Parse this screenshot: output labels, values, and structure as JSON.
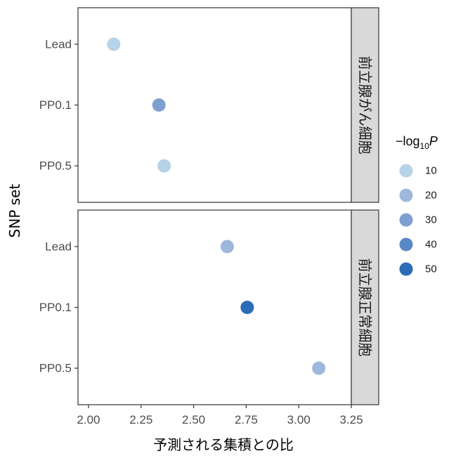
{
  "chart_data": {
    "type": "scatter",
    "xlabel": "予測される集積との比",
    "ylabel": "SNP set",
    "xlim": [
      1.95,
      3.25
    ],
    "x_ticks": [
      "2.00",
      "2.25",
      "2.50",
      "2.75",
      "3.00",
      "3.25"
    ],
    "x_tick_values": [
      2.0,
      2.25,
      2.5,
      2.75,
      3.0,
      3.25
    ],
    "categories": [
      "Lead",
      "PP0.1",
      "PP0.5"
    ],
    "grid": false,
    "legend": {
      "placement": "right",
      "title_prefix": "−log",
      "title_sub": "10",
      "title_var": "P",
      "levels": [
        10,
        20,
        30,
        40,
        50
      ],
      "colors": [
        "#b7d3e8",
        "#9db8dc",
        "#7e9fd0",
        "#5a87c5",
        "#2b6cb6"
      ]
    },
    "panels": [
      {
        "strip": "前立腺がん細胞",
        "points": [
          {
            "category": "Lead",
            "x": 2.12,
            "neglog10p": 12
          },
          {
            "category": "PP0.1",
            "x": 2.335,
            "neglog10p": 35
          },
          {
            "category": "PP0.5",
            "x": 2.36,
            "neglog10p": 10
          }
        ]
      },
      {
        "strip": "前立腺正常細胞",
        "points": [
          {
            "category": "Lead",
            "x": 2.66,
            "neglog10p": 25
          },
          {
            "category": "PP0.1",
            "x": 2.755,
            "neglog10p": 52
          },
          {
            "category": "PP0.5",
            "x": 3.095,
            "neglog10p": 17
          }
        ]
      }
    ]
  }
}
